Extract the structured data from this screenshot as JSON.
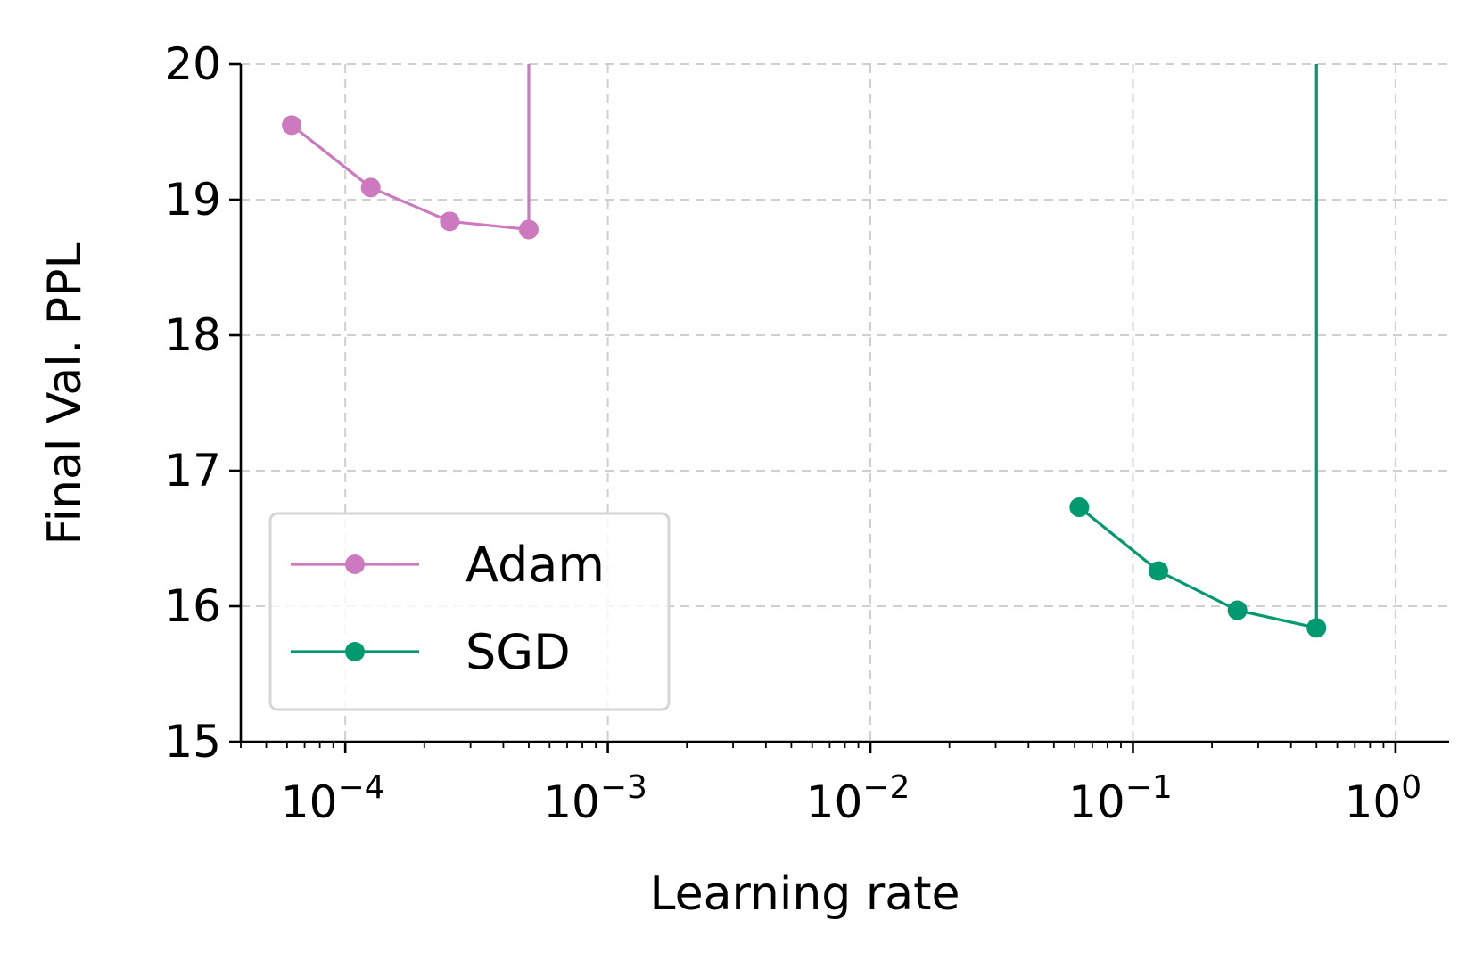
{
  "chart_data": {
    "type": "line",
    "title": "",
    "xlabel": "Learning rate",
    "ylabel": "Final Val. PPL",
    "xscale": "log",
    "xlim": [
      4e-05,
      1.6
    ],
    "ylim": [
      15,
      20
    ],
    "grid": true,
    "legend_position": "lower-left",
    "x_ticks": [
      {
        "value": 0.0001,
        "base": "10",
        "exp": "−4"
      },
      {
        "value": 0.001,
        "base": "10",
        "exp": "−3"
      },
      {
        "value": 0.01,
        "base": "10",
        "exp": "−2"
      },
      {
        "value": 0.1,
        "base": "10",
        "exp": "−1"
      },
      {
        "value": 1,
        "base": "10",
        "exp": "0"
      }
    ],
    "y_ticks": [
      15,
      16,
      17,
      18,
      19,
      20
    ],
    "series": [
      {
        "name": "Adam",
        "color": "#cc79bf",
        "x": [
          6.25e-05,
          0.000125,
          0.00025,
          0.0005
        ],
        "y": [
          19.55,
          19.09,
          18.84,
          18.78
        ],
        "divergence": {
          "x": 0.0005,
          "y_from": 18.78,
          "y_to": 20
        }
      },
      {
        "name": "SGD",
        "color": "#009970",
        "x": [
          0.0625,
          0.125,
          0.25,
          0.5
        ],
        "y": [
          16.73,
          16.26,
          15.97,
          15.84
        ],
        "divergence": {
          "x": 0.5,
          "y_from": 15.84,
          "y_to": 20
        }
      }
    ]
  }
}
